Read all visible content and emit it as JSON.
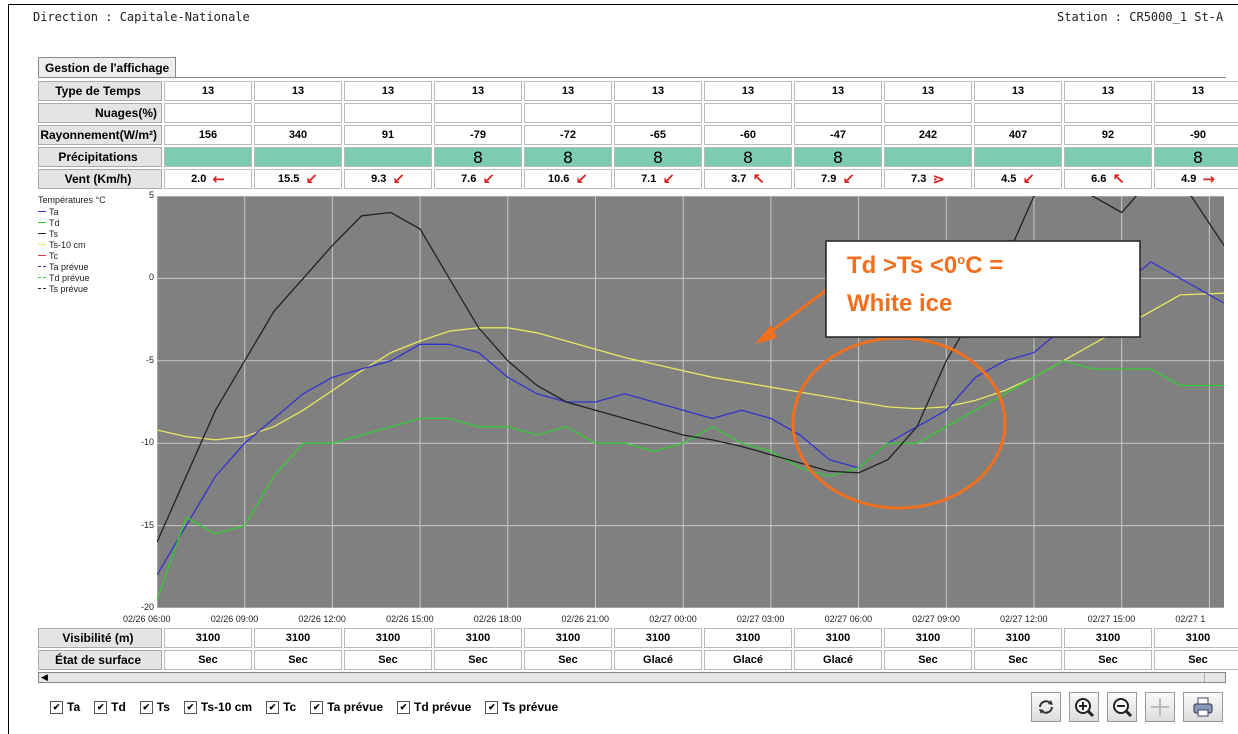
{
  "header": {
    "direction": "Direction : Capitale-Nationale",
    "station": "Station : CR5000_1 St-A"
  },
  "tab_label": "Gestion de l'affichage",
  "rows": {
    "type_temps": {
      "label": "Type de Temps",
      "values": [
        "13",
        "13",
        "13",
        "13",
        "13",
        "13",
        "13",
        "13",
        "13",
        "13",
        "13",
        "13"
      ]
    },
    "nuages": {
      "label": "Nuages(%)",
      "values": [
        "",
        "",
        "",
        "",
        "",
        "",
        "",
        "",
        "",
        "",
        "",
        ""
      ]
    },
    "rayonnement": {
      "label": "Rayonnement(W/m²)",
      "values": [
        "156",
        "340",
        "91",
        "-79",
        "-72",
        "-65",
        "-60",
        "-47",
        "242",
        "407",
        "92",
        "-90"
      ]
    },
    "precipitations": {
      "label": "Précipitations",
      "symbol": "8",
      "values": [
        false,
        false,
        false,
        true,
        true,
        true,
        true,
        true,
        false,
        false,
        false,
        true
      ]
    },
    "vent": {
      "label": "Vent (Km/h)",
      "values": [
        "2.0",
        "15.5",
        "9.3",
        "7.6",
        "10.6",
        "7.1",
        "3.7",
        "7.9",
        "7.3",
        "4.5",
        "6.6",
        "4.9"
      ],
      "arrows": [
        "←",
        "↙",
        "↙",
        "↙",
        "↙",
        "↙",
        "↖",
        "↙",
        "⋗",
        "↙",
        "↖",
        "→"
      ],
      "arrow_color": "#e02020"
    },
    "visibilite": {
      "label": "Visibilité  (m)",
      "values": [
        "3100",
        "3100",
        "3100",
        "3100",
        "3100",
        "3100",
        "3100",
        "3100",
        "3100",
        "3100",
        "3100",
        "3100"
      ]
    },
    "etat": {
      "label": "État de surface",
      "values": [
        "Sec",
        "Sec",
        "Sec",
        "Sec",
        "Sec",
        "Glacé",
        "Glacé",
        "Glacé",
        "Sec",
        "Sec",
        "Sec",
        "Sec"
      ]
    }
  },
  "legend": {
    "title": "Températures °C",
    "items": [
      {
        "name": "Ta",
        "color": "#3333cc",
        "dashed": false
      },
      {
        "name": "Td",
        "color": "#33cc33",
        "dashed": false
      },
      {
        "name": "Ts",
        "color": "#222222",
        "dashed": false
      },
      {
        "name": "Ts-10 cm",
        "color": "#e8e860",
        "dashed": false
      },
      {
        "name": "Tc",
        "color": "#ee3333",
        "dashed": false
      },
      {
        "name": "Ta prévue",
        "color": "#3333cc",
        "dashed": true
      },
      {
        "name": "Td prévue",
        "color": "#33cc33",
        "dashed": true
      },
      {
        "name": "Ts prévue",
        "color": "#222222",
        "dashed": true
      }
    ]
  },
  "annotation": {
    "line1": "Td >Ts <0",
    "sup": "o",
    "line1_end": "C =",
    "line2": "White ice",
    "color": "#f07020"
  },
  "checkboxes": [
    {
      "label": "Ta",
      "checked": true
    },
    {
      "label": "Td",
      "checked": true
    },
    {
      "label": "Ts",
      "checked": true
    },
    {
      "label": "Ts-10 cm",
      "checked": true
    },
    {
      "label": "Tc",
      "checked": true
    },
    {
      "label": "Ta prévue",
      "checked": true
    },
    {
      "label": "Td prévue",
      "checked": true
    },
    {
      "label": "Ts prévue",
      "checked": true
    }
  ],
  "toolbar_icons": [
    "refresh-icon",
    "zoom-in-icon",
    "zoom-out-icon",
    "pan-icon",
    "print-icon"
  ],
  "chart_data": {
    "type": "line",
    "ylim": [
      -20,
      5
    ],
    "yticks": [
      "5",
      "0",
      "-5",
      "-10",
      "-15",
      "-20"
    ],
    "xlim": [
      0,
      36.5
    ],
    "xticks": [
      "02/26 06:00",
      "02/26 09:00",
      "02/26 12:00",
      "02/26 15:00",
      "02/26 18:00",
      "02/26 21:00",
      "02/27 00:00",
      "02/27 03:00",
      "02/27 06:00",
      "02/27 09:00",
      "02/27 12:00",
      "02/27 15:00",
      "02/27 1"
    ],
    "x_unit_hours_from": "02/26 06:00",
    "grid": true,
    "series": [
      {
        "name": "Ts-10 cm",
        "color": "#e8e860",
        "x": [
          0,
          1,
          2,
          3,
          4,
          5,
          6,
          7,
          8,
          9,
          10,
          11,
          12,
          13,
          14,
          15,
          16,
          17,
          18,
          19,
          20,
          21,
          22,
          23,
          24,
          25,
          26,
          27,
          28,
          29,
          30,
          31,
          32,
          33,
          34,
          35,
          36.5
        ],
        "y": [
          -9.2,
          -9.6,
          -9.8,
          -9.6,
          -9.0,
          -8.0,
          -6.8,
          -5.6,
          -4.5,
          -3.8,
          -3.2,
          -3.0,
          -3.0,
          -3.3,
          -3.8,
          -4.3,
          -4.8,
          -5.2,
          -5.6,
          -6.0,
          -6.3,
          -6.6,
          -6.9,
          -7.2,
          -7.5,
          -7.8,
          -7.9,
          -7.8,
          -7.4,
          -6.8,
          -6.0,
          -5.0,
          -4.0,
          -3.0,
          -2.0,
          -1.0,
          -0.9
        ]
      },
      {
        "name": "Ta",
        "color": "#3333cc",
        "x": [
          0,
          1,
          2,
          3,
          4,
          5,
          6,
          7,
          8,
          9,
          10,
          11,
          12,
          13,
          14,
          15,
          16,
          17,
          18,
          19,
          20,
          21,
          22,
          23,
          24,
          25,
          26,
          27,
          28,
          29,
          30,
          31,
          32,
          33,
          34,
          35,
          36.5
        ],
        "y": [
          -18,
          -15,
          -12,
          -10,
          -8.5,
          -7,
          -6,
          -5.5,
          -5,
          -4,
          -4,
          -4.5,
          -6,
          -7,
          -7.5,
          -7.5,
          -7,
          -7.5,
          -8,
          -8.5,
          -8,
          -8.5,
          -9.5,
          -11,
          -11.5,
          -10,
          -9,
          -8,
          -6,
          -5,
          -4.5,
          -3,
          -2,
          -0.5,
          1,
          0,
          -1.5
        ]
      },
      {
        "name": "Td",
        "color": "#33cc33",
        "x": [
          0,
          1,
          2,
          3,
          4,
          5,
          6,
          7,
          8,
          9,
          10,
          11,
          12,
          13,
          14,
          15,
          16,
          17,
          18,
          19,
          20,
          21,
          22,
          23,
          24,
          25,
          26,
          27,
          28,
          29,
          30,
          31,
          32,
          33,
          34,
          35,
          36.5
        ],
        "y": [
          -19.5,
          -14.5,
          -15.5,
          -15,
          -12,
          -10,
          -10,
          -9.5,
          -9,
          -8.5,
          -8.5,
          -9,
          -9,
          -9.5,
          -9,
          -10,
          -10,
          -10.5,
          -10,
          -9,
          -10,
          -10.5,
          -11.5,
          -12,
          -11.5,
          -10,
          -10,
          -9,
          -8,
          -7,
          -6,
          -5,
          -5.5,
          -5.5,
          -5.5,
          -6.5,
          -6.5
        ]
      },
      {
        "name": "Ts",
        "color": "#222222",
        "x": [
          0,
          1,
          2,
          3,
          4,
          5,
          6,
          7,
          8,
          9,
          10,
          11,
          12,
          13,
          14,
          15,
          16,
          17,
          18,
          19,
          20,
          21,
          22,
          23,
          24,
          25,
          26,
          27,
          28,
          29,
          30,
          31,
          32,
          33,
          34,
          35,
          36.5
        ],
        "y": [
          -16,
          -12,
          -8,
          -5,
          -2,
          0,
          2,
          3.8,
          4,
          3,
          0,
          -3,
          -5,
          -6.5,
          -7.5,
          -8,
          -8.5,
          -9,
          -9.5,
          -9.8,
          -10.2,
          -10.7,
          -11.2,
          -11.7,
          -11.8,
          -11,
          -9,
          -5,
          -2,
          1,
          5,
          6,
          5,
          4,
          6,
          6,
          2
        ]
      }
    ]
  }
}
